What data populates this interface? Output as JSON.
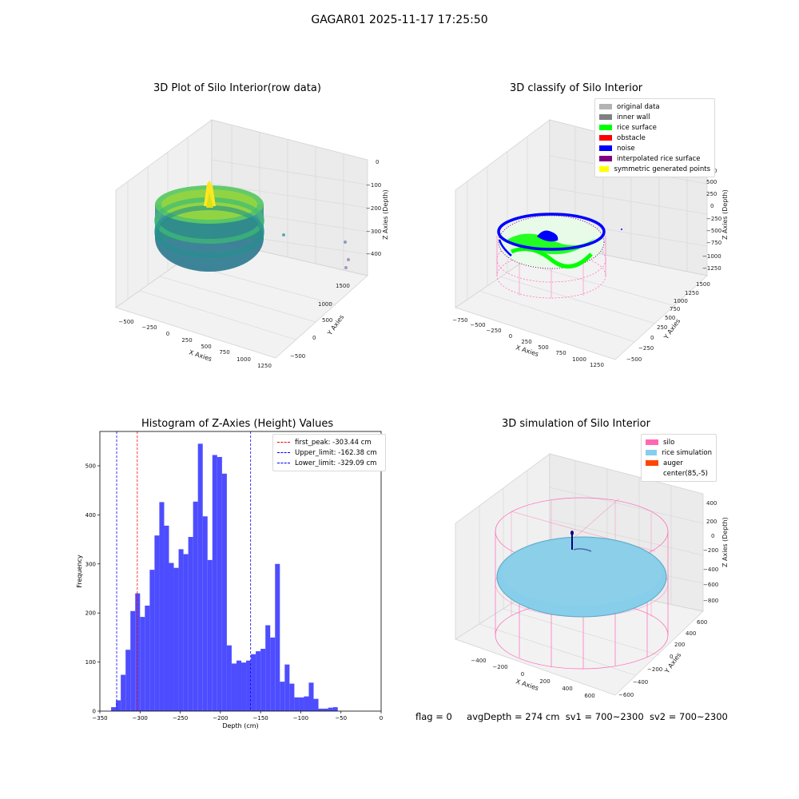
{
  "page": {
    "suptitle": "GAGAR01 2025-11-17 17:25:50"
  },
  "status_line": {
    "flag": "flag = 0",
    "avg_depth": "avgDepth = 274 cm",
    "sv1": "sv1 = 700~2300",
    "sv2": "sv2 = 700~2300"
  },
  "colors": {
    "raw_low": "#2c7c8e",
    "raw_high": "#d8e219",
    "raw_mid": "#3fbc73",
    "original_data": "#b3b3b3",
    "inner_wall": "#808080",
    "rice_surface": "#00ff00",
    "obstacle": "#ff0000",
    "noise": "#0000ff",
    "interpolated": "#800080",
    "symmetric": "#ffff00",
    "silo": "#ff69b4",
    "rice_simulation": "#87ceeb",
    "auger": "#ff4500",
    "hist_bar": "#4d4dff",
    "first_peak": "#ff0000",
    "limits": "#0000ff"
  },
  "chart_data": [
    {
      "type": "scatter",
      "projection": "3d",
      "title": "3D Plot of Silo Interior(row data)",
      "xlabel": "X Axies",
      "ylabel": "Y Axies",
      "zlabel": "Z Axies (Depth)",
      "x_ticks": [
        "−500",
        "−250",
        "0",
        "250",
        "500",
        "750",
        "1000",
        "1250"
      ],
      "y_ticks": [
        "−500",
        "0",
        "500",
        "1000",
        "1500"
      ],
      "z_ticks": [
        "0",
        "−100",
        "−200",
        "−300",
        "−400"
      ],
      "xlim": [
        -600,
        1300
      ],
      "ylim": [
        -650,
        1600
      ],
      "zlim": [
        -450,
        0
      ],
      "colormap": "viridis",
      "grid": true
    },
    {
      "type": "scatter",
      "projection": "3d",
      "title": "3D classify of Silo Interior",
      "xlabel": "X Axies",
      "ylabel": "Y Axies",
      "zlabel": "Z Axies (Depth)",
      "x_ticks": [
        "−750",
        "−500",
        "−250",
        "0",
        "250",
        "500",
        "750",
        "1000",
        "1250"
      ],
      "y_ticks": [
        "−500",
        "−250",
        "0",
        "250",
        "500",
        "750",
        "1000",
        "1250",
        "1500"
      ],
      "z_ticks": [
        "750",
        "500",
        "250",
        "0",
        "−250",
        "−500",
        "−750",
        "−1000",
        "−1250"
      ],
      "xlim": [
        -800,
        1300
      ],
      "ylim": [
        -600,
        1550
      ],
      "zlim": [
        -1300,
        800
      ],
      "legend": {
        "placement": "top-right",
        "entries": [
          {
            "label": "original data",
            "color": "#b3b3b3"
          },
          {
            "label": "inner wall",
            "color": "#808080"
          },
          {
            "label": "rice surface",
            "color": "#00ff00"
          },
          {
            "label": "obstacle",
            "color": "#ff0000"
          },
          {
            "label": "noise",
            "color": "#0000ff"
          },
          {
            "label": "interpolated rice surface",
            "color": "#800080"
          },
          {
            "label": "symmetric generated points",
            "color": "#ffff00"
          }
        ]
      },
      "grid": true
    },
    {
      "type": "bar",
      "subtype": "histogram",
      "title": "Histogram of Z-Axies (Height) Values",
      "xlabel": "Depth (cm)",
      "ylabel": "Frequency",
      "xlim": [
        -350,
        0
      ],
      "ylim": [
        0,
        570
      ],
      "x_ticks": [
        "−350",
        "−300",
        "−250",
        "−200",
        "−150",
        "−100",
        "−50",
        "0"
      ],
      "x_tick_values": [
        -350,
        -300,
        -250,
        -200,
        -150,
        -100,
        -50,
        0
      ],
      "y_ticks": [
        "0",
        "100",
        "200",
        "300",
        "400",
        "500"
      ],
      "y_tick_values": [
        0,
        100,
        200,
        300,
        400,
        500
      ],
      "bin_start": -336,
      "bin_width": 6,
      "values": [
        8,
        22,
        74,
        125,
        204,
        240,
        192,
        215,
        288,
        358,
        426,
        378,
        302,
        292,
        330,
        320,
        355,
        427,
        545,
        397,
        308,
        522,
        518,
        484,
        134,
        97,
        103,
        99,
        103,
        116,
        122,
        127,
        175,
        150,
        300,
        60,
        95,
        56,
        28,
        28,
        30,
        58,
        25,
        5,
        5,
        7,
        8
      ],
      "reference_lines": [
        {
          "label": "first_peak: -303.44 cm",
          "x": -303.44,
          "color": "#ff0000"
        },
        {
          "label": "Upper_limit: -162.38 cm",
          "x": -162.38,
          "color": "#0000ff"
        },
        {
          "label": "Lower_limit: -329.09 cm",
          "x": -329.09,
          "color": "#0000ff"
        }
      ],
      "legend": {
        "placement": "top-right"
      },
      "grid": false
    },
    {
      "type": "scatter",
      "projection": "3d",
      "title": "3D simulation of Silo Interior",
      "xlabel": "X Axies",
      "ylabel": "Y Axies",
      "zlabel": "Z Axies (Depth)",
      "x_ticks": [
        "−400",
        "−200",
        "0",
        "200",
        "400",
        "600"
      ],
      "y_ticks": [
        "−600",
        "−400",
        "−200",
        "0",
        "200",
        "400",
        "600"
      ],
      "z_ticks": [
        "400",
        "200",
        "0",
        "−200",
        "−400",
        "−600",
        "−800"
      ],
      "xlim": [
        -500,
        700
      ],
      "ylim": [
        -650,
        650
      ],
      "zlim": [
        -900,
        450
      ],
      "legend": {
        "placement": "top-right",
        "entries": [
          {
            "label": "silo",
            "color": "#ff69b4"
          },
          {
            "label": "rice simulation",
            "color": "#87ceeb"
          },
          {
            "label": "auger",
            "color": "#ff4500"
          },
          {
            "label": "center(85,-5)",
            "color": ""
          }
        ]
      },
      "grid": true
    }
  ]
}
